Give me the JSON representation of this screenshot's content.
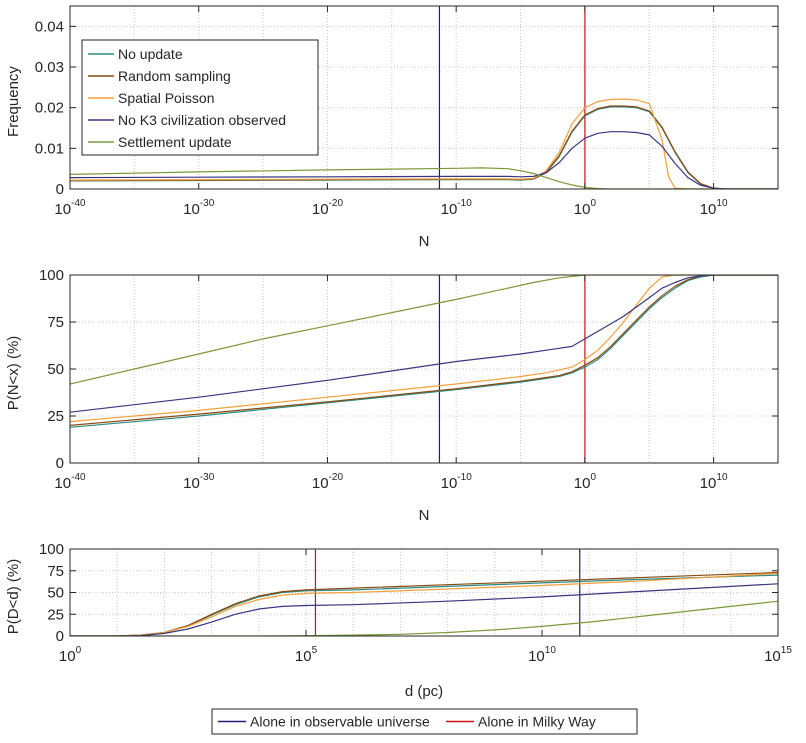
{
  "colors": {
    "no_update": "#2a8a86",
    "random_sampling": "#8a4a10",
    "spatial_poisson": "#f2a03a",
    "no_k3": "#3a3580",
    "settlement": "#7a9a3a",
    "observable_universe": "#202070",
    "milky_way": "#cc1111",
    "grid": "#c8c8c8",
    "axis": "#262626"
  },
  "chart_data": [
    {
      "type": "line",
      "id": "frequency",
      "title": "",
      "xlabel": "N",
      "ylabel": "Frequency",
      "xscale": "log10",
      "xlim_log10": [
        -40,
        15
      ],
      "ylim": [
        0,
        0.045
      ],
      "grid": true,
      "x_tick_exponents": [
        -40,
        -30,
        -20,
        -10,
        0,
        10
      ],
      "x_tick_labels": [
        {
          "base": "10",
          "exp": "-40"
        },
        {
          "base": "10",
          "exp": "-30"
        },
        {
          "base": "10",
          "exp": "-20"
        },
        {
          "base": "10",
          "exp": "-10"
        },
        {
          "base": "10",
          "exp": "0"
        },
        {
          "base": "10",
          "exp": "10"
        }
      ],
      "y_ticks": [
        0,
        0.01,
        0.02,
        0.03,
        0.04
      ],
      "y_tick_labels": [
        "0",
        "0.01",
        "0.02",
        "0.03",
        "0.04"
      ],
      "legend": {
        "placement": "top-left",
        "entries": [
          "No update",
          "Random sampling",
          "Spatial Poisson",
          "No K3 civilization observed",
          "Settlement update"
        ]
      },
      "vlines_log10": [
        {
          "name": "observable-universe",
          "x_log10": -11.3
        },
        {
          "name": "milky-way",
          "x_log10": 0
        }
      ],
      "series": [
        {
          "name": "No update",
          "color_key": "no_update",
          "x_log10": [
            -40,
            -30,
            -20,
            -10,
            -6,
            -5,
            -4,
            -3,
            -2,
            -1,
            0,
            1,
            2,
            3,
            4,
            5,
            6,
            7,
            8,
            9,
            10,
            11,
            15
          ],
          "values": [
            0.002,
            0.0021,
            0.0022,
            0.0023,
            0.0023,
            0.0022,
            0.0024,
            0.004,
            0.008,
            0.014,
            0.018,
            0.0196,
            0.0202,
            0.0202,
            0.02,
            0.019,
            0.015,
            0.009,
            0.004,
            0.0012,
            0.0002,
            0,
            0
          ]
        },
        {
          "name": "Random sampling",
          "color_key": "random_sampling",
          "x_log10": [
            -40,
            -30,
            -20,
            -10,
            -6,
            -5,
            -4,
            -3,
            -2,
            -1,
            0,
            1,
            2,
            3,
            4,
            5,
            6,
            7,
            8,
            9,
            10,
            11,
            15
          ],
          "values": [
            0.0021,
            0.0022,
            0.0023,
            0.0024,
            0.0024,
            0.0023,
            0.0025,
            0.0042,
            0.0082,
            0.0142,
            0.0182,
            0.0198,
            0.0204,
            0.0204,
            0.0202,
            0.0192,
            0.0152,
            0.0092,
            0.0042,
            0.0013,
            0.0002,
            0,
            0
          ]
        },
        {
          "name": "Spatial Poisson",
          "color_key": "spatial_poisson",
          "x_log10": [
            -40,
            -30,
            -20,
            -10,
            -6,
            -5,
            -4,
            -3,
            -2,
            -1,
            0,
            1,
            2,
            3,
            4,
            5,
            6,
            6.5,
            7,
            8,
            15
          ],
          "values": [
            0.0022,
            0.0023,
            0.0024,
            0.0025,
            0.0025,
            0.0024,
            0.0026,
            0.0045,
            0.009,
            0.016,
            0.02,
            0.0215,
            0.022,
            0.0221,
            0.0219,
            0.021,
            0.012,
            0.003,
            0.0002,
            0,
            0
          ]
        },
        {
          "name": "No K3 civilization observed",
          "color_key": "no_k3",
          "x_log10": [
            -40,
            -30,
            -20,
            -10,
            -6,
            -5,
            -4,
            -3,
            -2,
            -1,
            0,
            1,
            2,
            3,
            4,
            5,
            6,
            7,
            8,
            9,
            10,
            11,
            15
          ],
          "values": [
            0.0028,
            0.0029,
            0.003,
            0.0031,
            0.0031,
            0.003,
            0.0031,
            0.004,
            0.0065,
            0.01,
            0.0125,
            0.0137,
            0.0141,
            0.0141,
            0.0139,
            0.0133,
            0.0105,
            0.0063,
            0.0028,
            0.0009,
            0.0002,
            0,
            0
          ]
        },
        {
          "name": "Settlement update",
          "color_key": "settlement",
          "x_log10": [
            -40,
            -30,
            -20,
            -10,
            -8,
            -6,
            -5,
            -4,
            -3,
            -2,
            -1,
            0,
            1,
            2,
            3,
            15
          ],
          "values": [
            0.0036,
            0.0042,
            0.0047,
            0.0051,
            0.0052,
            0.005,
            0.0045,
            0.0038,
            0.0028,
            0.0018,
            0.001,
            0.0004,
            0.0001,
            0,
            0,
            0
          ]
        }
      ]
    },
    {
      "type": "line",
      "id": "cdf-n",
      "title": "",
      "xlabel": "N",
      "ylabel": "P(N<x) (%)",
      "xscale": "log10",
      "xlim_log10": [
        -40,
        15
      ],
      "ylim": [
        0,
        100
      ],
      "grid": true,
      "x_tick_exponents": [
        -40,
        -30,
        -20,
        -10,
        0,
        10
      ],
      "x_tick_labels": [
        {
          "base": "10",
          "exp": "-40"
        },
        {
          "base": "10",
          "exp": "-30"
        },
        {
          "base": "10",
          "exp": "-20"
        },
        {
          "base": "10",
          "exp": "-10"
        },
        {
          "base": "10",
          "exp": "0"
        },
        {
          "base": "10",
          "exp": "10"
        }
      ],
      "y_ticks": [
        0,
        25,
        50,
        75,
        100
      ],
      "y_tick_labels": [
        "0",
        "25",
        "50",
        "75",
        "100"
      ],
      "vlines_log10": [
        {
          "name": "observable-universe",
          "x_log10": -11.3
        },
        {
          "name": "milky-way",
          "x_log10": 0
        }
      ],
      "series": [
        {
          "name": "No update",
          "color_key": "no_update",
          "x_log10": [
            -40,
            -30,
            -20,
            -10,
            -5,
            -3,
            -2,
            -1,
            0,
            1,
            2,
            3,
            4,
            5,
            6,
            7,
            8,
            9,
            10,
            15
          ],
          "values": [
            19,
            25,
            32,
            39,
            43,
            45,
            46,
            48,
            51,
            55,
            61,
            68,
            75,
            82,
            88,
            93,
            97,
            99,
            100,
            100
          ]
        },
        {
          "name": "Random sampling",
          "color_key": "random_sampling",
          "x_log10": [
            -40,
            -30,
            -20,
            -10,
            -5,
            -3,
            -2,
            -1,
            0,
            1,
            2,
            3,
            4,
            5,
            6,
            7,
            8,
            9,
            10,
            15
          ],
          "values": [
            20,
            26,
            32.5,
            39.5,
            43.5,
            45.5,
            46.5,
            48.5,
            52,
            56,
            62,
            69,
            76,
            83,
            89,
            94,
            97.5,
            99.5,
            100,
            100
          ]
        },
        {
          "name": "Spatial Poisson",
          "color_key": "spatial_poisson",
          "x_log10": [
            -40,
            -30,
            -20,
            -10,
            -5,
            -3,
            -2,
            -1,
            0,
            1,
            2,
            3,
            4,
            5,
            6,
            7,
            8,
            15
          ],
          "values": [
            22,
            28,
            35,
            42,
            46,
            48,
            49.5,
            51,
            55,
            60,
            67,
            75,
            84,
            93,
            99,
            100,
            100,
            100
          ]
        },
        {
          "name": "No K3 civilization observed",
          "color_key": "no_k3",
          "x_log10": [
            -40,
            -30,
            -20,
            -10,
            -5,
            -3,
            -2,
            -1,
            0,
            1,
            2,
            3,
            4,
            5,
            6,
            7,
            8,
            9,
            10,
            15
          ],
          "values": [
            27,
            35,
            44,
            54,
            58,
            60,
            61,
            62,
            66,
            70,
            74,
            78,
            83,
            88,
            93,
            96,
            98.5,
            99.5,
            100,
            100
          ]
        },
        {
          "name": "Settlement update",
          "color_key": "settlement",
          "x_log10": [
            -40,
            -35,
            -30,
            -25,
            -20,
            -15,
            -10,
            -8,
            -6,
            -4,
            -2,
            0,
            2,
            15
          ],
          "values": [
            42,
            50,
            58,
            66,
            73,
            80,
            87,
            90,
            93,
            96,
            98.5,
            100,
            100,
            100
          ]
        }
      ]
    },
    {
      "type": "line",
      "id": "cdf-d",
      "title": "",
      "xlabel": "d (pc)",
      "ylabel": "P(D<d) (%)",
      "xscale": "log10",
      "xlim_log10": [
        0,
        15
      ],
      "ylim": [
        0,
        100
      ],
      "grid": true,
      "x_tick_exponents": [
        0,
        5,
        10,
        15
      ],
      "x_tick_labels": [
        {
          "base": "10",
          "exp": "0"
        },
        {
          "base": "10",
          "exp": "5"
        },
        {
          "base": "10",
          "exp": "10"
        },
        {
          "base": "10",
          "exp": "15"
        }
      ],
      "y_ticks": [
        0,
        25,
        50,
        75,
        100
      ],
      "y_tick_labels": [
        "0",
        "25",
        "50",
        "75",
        "100"
      ],
      "legend": {
        "placement": "bottom-center",
        "entries": [
          "Alone in observable universe",
          "Alone in Milky Way"
        ]
      },
      "vlines_log10": [
        {
          "name": "milky-way",
          "x_log10": 5.2
        },
        {
          "name": "observable-universe",
          "x_log10": 10.8
        }
      ],
      "series": [
        {
          "name": "No update",
          "color_key": "no_update",
          "x_log10": [
            0,
            1,
            1.5,
            2,
            2.5,
            3,
            3.5,
            4,
            4.5,
            5,
            6,
            8,
            10,
            12,
            15
          ],
          "values": [
            0,
            0,
            1,
            4,
            12,
            24,
            36,
            45,
            50,
            52,
            53,
            57,
            61,
            65,
            70
          ]
        },
        {
          "name": "Random sampling",
          "color_key": "random_sampling",
          "x_log10": [
            0,
            1,
            1.5,
            2,
            2.5,
            3,
            3.5,
            4,
            4.5,
            5,
            6,
            8,
            10,
            12,
            15
          ],
          "values": [
            0,
            0,
            1,
            4,
            12,
            25,
            37,
            46,
            51,
            53,
            55,
            59,
            63,
            67,
            73
          ]
        },
        {
          "name": "Spatial Poisson",
          "color_key": "spatial_poisson",
          "x_log10": [
            0,
            1,
            1.5,
            2,
            2.5,
            3,
            3.5,
            4,
            4.5,
            5,
            6,
            8,
            10,
            12,
            15
          ],
          "values": [
            0,
            0,
            1,
            4,
            11,
            22,
            34,
            42,
            47,
            49,
            50,
            54,
            58,
            63,
            72
          ]
        },
        {
          "name": "No K3 civilization observed",
          "color_key": "no_k3",
          "x_log10": [
            0,
            1,
            1.5,
            2,
            2.5,
            3,
            3.5,
            4,
            4.5,
            5,
            6,
            8,
            10,
            12,
            15
          ],
          "values": [
            0,
            0,
            0.5,
            3,
            8,
            16,
            25,
            31,
            34,
            35,
            36,
            40,
            45,
            51,
            60
          ]
        },
        {
          "name": "Settlement update",
          "color_key": "settlement",
          "x_log10": [
            0,
            4,
            5,
            6,
            7,
            8,
            9,
            10,
            11,
            12,
            13,
            14,
            15
          ],
          "values": [
            0,
            0,
            0.3,
            1,
            2,
            4,
            7,
            11,
            16,
            22,
            28,
            34,
            40
          ]
        }
      ]
    }
  ]
}
